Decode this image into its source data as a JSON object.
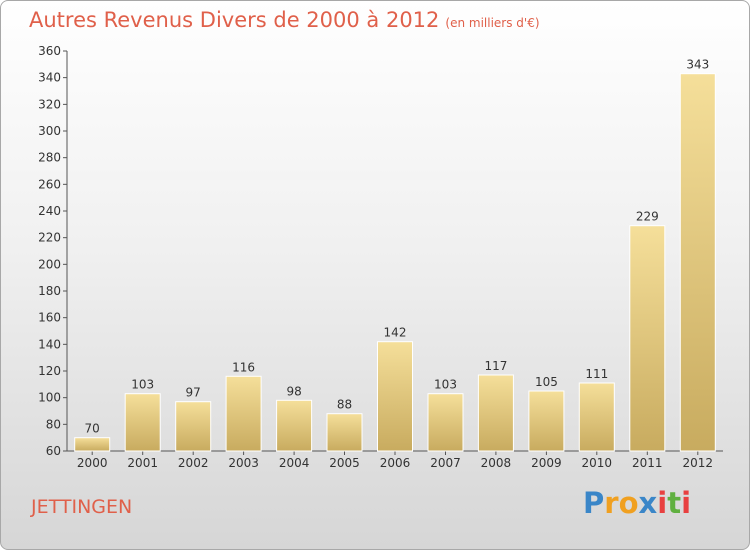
{
  "title": "Autres Revenus Divers de 2000 à 2012",
  "subtitle": "(en milliers d'€)",
  "place": "JETTINGEN",
  "logo": {
    "letters": [
      "P",
      "r",
      "o",
      "x",
      "i",
      "t",
      "i"
    ],
    "colors": [
      "#3a86c8",
      "#f0a020",
      "#f0a020",
      "#3a86c8",
      "#e84040",
      "#60b040",
      "#e84040"
    ]
  },
  "colors": {
    "title": "#e0604a",
    "bar_light": "#f5df9a",
    "bar_dark": "#c8ab5f",
    "axis": "#555555"
  },
  "chart_data": {
    "type": "bar",
    "title": "Autres Revenus Divers de 2000 à 2012",
    "subtitle": "(en milliers d'€)",
    "categories": [
      "2000",
      "2001",
      "2002",
      "2003",
      "2004",
      "2005",
      "2006",
      "2007",
      "2008",
      "2009",
      "2010",
      "2011",
      "2012"
    ],
    "values": [
      70,
      103,
      97,
      116,
      98,
      88,
      142,
      103,
      117,
      105,
      111,
      229,
      343
    ],
    "ylim": [
      60,
      360
    ],
    "ytick_step": 20,
    "xlabel": "",
    "ylabel": "",
    "grid": false,
    "data_labels": true
  }
}
